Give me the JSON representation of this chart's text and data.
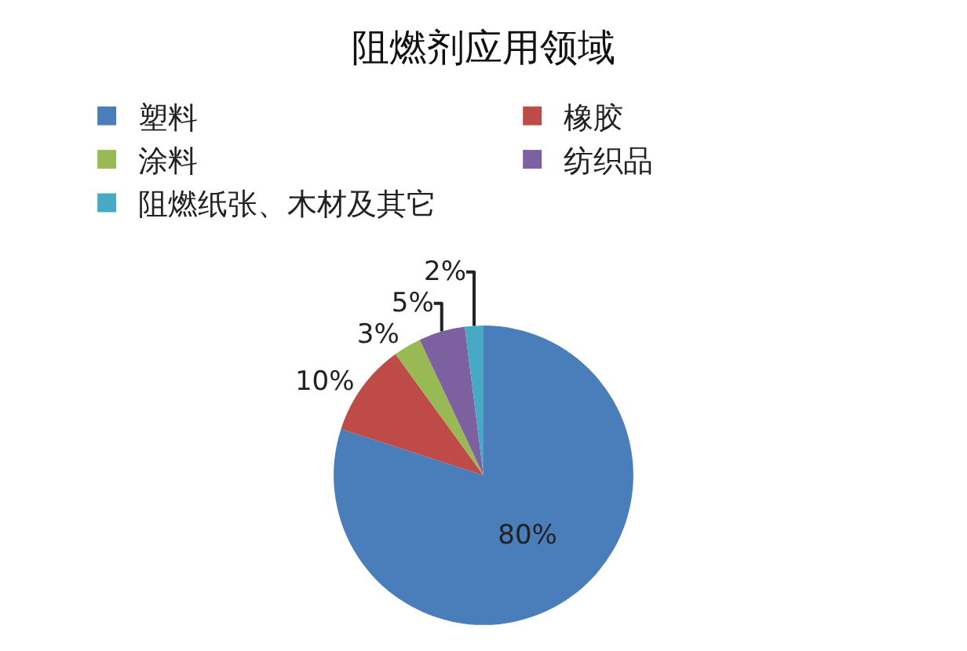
{
  "chart_data": {
    "type": "pie",
    "title": "阻燃剂应用领域",
    "categories": [
      "塑料",
      "橡胶",
      "涂料",
      "纺织品",
      "阻燃纸张、木材及其它"
    ],
    "values": [
      80,
      10,
      3,
      5,
      2
    ],
    "value_labels": [
      "80%",
      "10%",
      "3%",
      "5%",
      "2%"
    ],
    "colors": [
      "#4a7ebb",
      "#be4b48",
      "#98b954",
      "#7d60a0",
      "#46aac5"
    ],
    "legend": "top"
  }
}
